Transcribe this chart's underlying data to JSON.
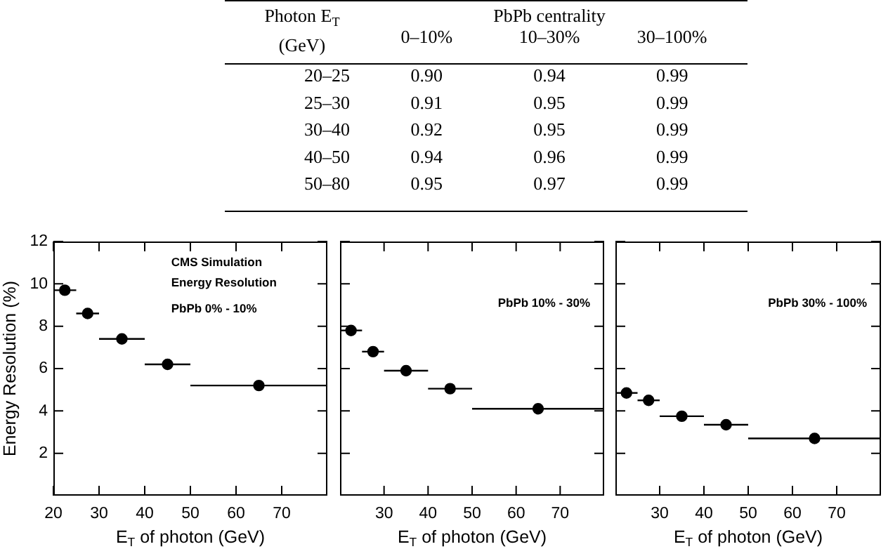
{
  "chart_data": [
    {
      "type": "heatmap",
      "xlabel": "PbPb centrality",
      "ylabel": "Photon E$_{T}$ (GeV)",
      "categories": [
        "0–10%",
        "10–30%",
        "30–100%"
      ],
      "y_categories": [
        "20–25",
        "25–30",
        "30–40",
        "40–50",
        "50–80"
      ],
      "cells": [
        [
          0.9,
          0.94,
          0.99
        ],
        [
          0.91,
          0.95,
          0.99
        ],
        [
          0.92,
          0.95,
          0.99
        ],
        [
          0.94,
          0.96,
          0.99
        ],
        [
          0.95,
          0.97,
          0.99
        ]
      ],
      "cell_labels": [
        [
          "0.90",
          "0.94",
          "0.99"
        ],
        [
          "0.91",
          "0.95",
          "0.99"
        ],
        [
          "0.92",
          "0.95",
          "0.99"
        ],
        [
          "0.94",
          "0.96",
          "0.99"
        ],
        [
          "0.95",
          "0.97",
          "0.99"
        ]
      ]
    },
    {
      "type": "scatter",
      "xlabel": "E$_{T}$ of photon (GeV)",
      "ylabel": "Energy Resolution (%)",
      "marker": "circle",
      "grid": false,
      "legend": false,
      "annotations": [
        "CMS Simulation",
        "Energy Resolution",
        "PbPb 0% - 10%"
      ],
      "x": [
        22.5,
        27.5,
        35,
        45,
        65
      ],
      "series": [
        {
          "color": "#000000",
          "values": [
            9.7,
            8.6,
            7.4,
            6.2,
            5.2
          ],
          "xerrors": [
            2.5,
            2.5,
            5,
            5,
            15
          ]
        }
      ],
      "xlim": [
        20,
        80
      ],
      "xticks": [
        20,
        30,
        40,
        50,
        60,
        70
      ],
      "ylim": [
        0,
        12
      ],
      "yticks": [
        2,
        4,
        6,
        8,
        10,
        12
      ]
    },
    {
      "type": "scatter",
      "xlabel": "E$_{T}$ of photon (GeV)",
      "marker": "circle",
      "grid": false,
      "legend": false,
      "tick_labels": "x",
      "annotations": [
        "PbPb 10% - 30%"
      ],
      "x": [
        22.5,
        27.5,
        35,
        45,
        65
      ],
      "series": [
        {
          "color": "#000000",
          "values": [
            7.8,
            6.8,
            5.9,
            5.05,
            4.1
          ],
          "xerrors": [
            2.5,
            2.5,
            5,
            5,
            15
          ]
        }
      ],
      "xlim": [
        20,
        80
      ],
      "xticks": [
        30,
        40,
        50,
        60,
        70
      ],
      "ylim": [
        0,
        12
      ],
      "yticks": [
        2,
        4,
        6,
        8,
        10,
        12
      ]
    },
    {
      "type": "scatter",
      "xlabel": "E$_{T}$ of photon (GeV)",
      "marker": "circle",
      "grid": false,
      "legend": false,
      "tick_labels": "x",
      "annotations": [
        "PbPb 30% - 100%"
      ],
      "x": [
        22.5,
        27.5,
        35,
        45,
        65
      ],
      "series": [
        {
          "color": "#000000",
          "values": [
            4.85,
            4.5,
            3.75,
            3.35,
            2.7
          ],
          "xerrors": [
            2.5,
            2.5,
            5,
            5,
            15
          ]
        }
      ],
      "xlim": [
        20,
        80
      ],
      "xticks": [
        30,
        40,
        50,
        60,
        70
      ],
      "ylim": [
        0,
        12
      ],
      "yticks": [
        2,
        4,
        6,
        8,
        10,
        12
      ]
    }
  ]
}
